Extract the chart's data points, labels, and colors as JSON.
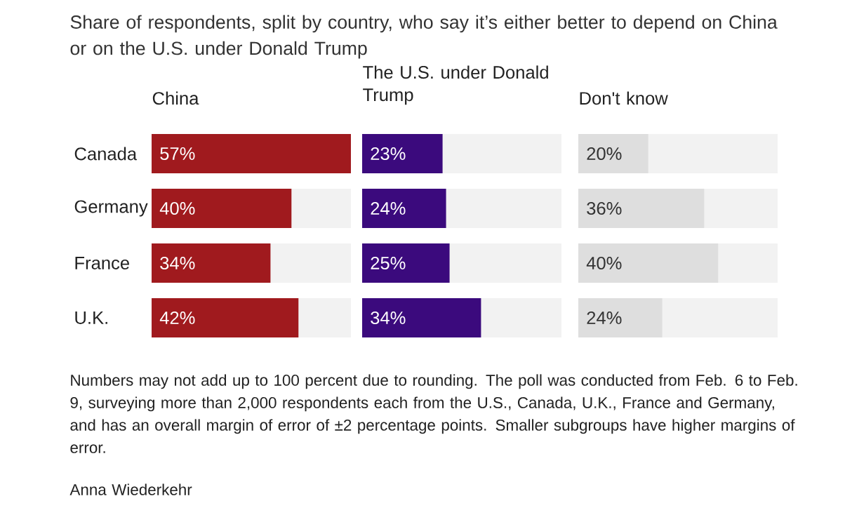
{
  "chart_data": [
    {
      "type": "other",
      "title": "Share of respondents, split by country, who say it’s either better to depend on China or on the U.S. under Donald Trump",
      "annotations": [
        "Numbers may not add up to 100 percent due to rounding. The poll was conducted from Feb. 6 to Feb. 9, surveying more than 2,000 respondents each from the U.S., Canada, U.K., France and Germany, and has an overall margin of error of ±2 percentage points. Smaller subgroups have higher margins of error.",
        "Anna Wiederkehr"
      ]
    },
    {
      "type": "bar",
      "orientation": "horizontal",
      "title": "China",
      "categories": [
        "Canada",
        "Germany",
        "France",
        "U.K."
      ],
      "values": [
        57,
        40,
        34,
        42
      ],
      "value_labels": [
        "57%",
        "40%",
        "34%",
        "42%"
      ],
      "color": "#a01a1e",
      "tick_labels": "y"
    },
    {
      "type": "bar",
      "orientation": "horizontal",
      "title": "The U.S. under Donald Trump",
      "values": [
        23,
        24,
        25,
        34
      ],
      "value_labels": [
        "23%",
        "24%",
        "25%",
        "34%"
      ],
      "color": "#3b0a7d",
      "tick_labels": false
    },
    {
      "type": "bar",
      "orientation": "horizontal",
      "title": "Don't know",
      "values": [
        20,
        36,
        40,
        24
      ],
      "value_labels": [
        "20%",
        "36%",
        "40%",
        "24%"
      ],
      "color": "#dedede",
      "tick_labels": false
    }
  ]
}
